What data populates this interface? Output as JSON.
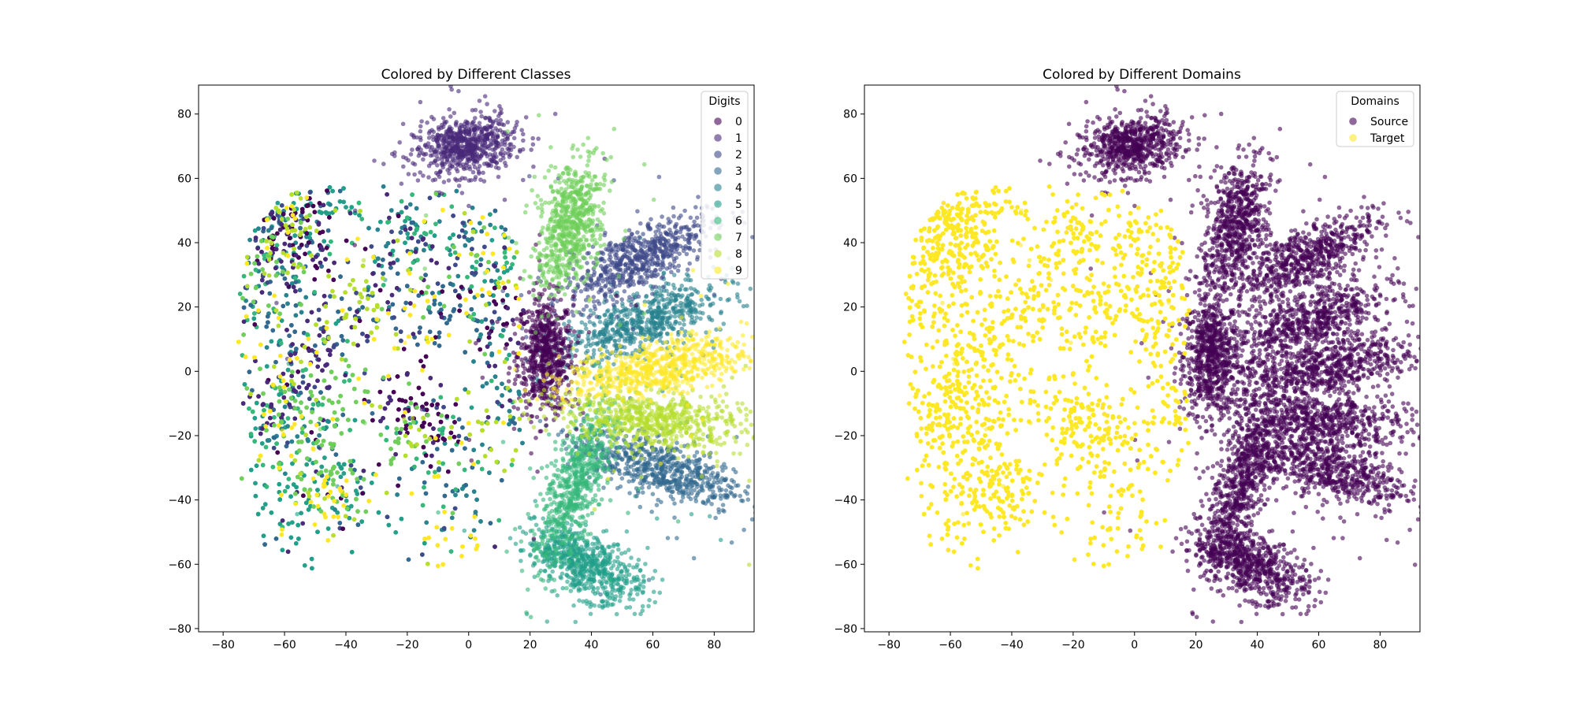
{
  "colors": {
    "digits": [
      "#440154",
      "#482878",
      "#3e4989",
      "#31688e",
      "#26828e",
      "#1f9e89",
      "#35b779",
      "#6ece58",
      "#b5de2b",
      "#fde725"
    ],
    "source": "#440154",
    "target": "#fde725"
  },
  "chart_data": [
    {
      "type": "scatter",
      "title": "Colored by Different Classes",
      "xlabel": "",
      "ylabel": "",
      "xlim": [
        -88,
        93
      ],
      "ylim": [
        -81,
        89
      ],
      "xticks": [
        -80,
        -60,
        -40,
        -20,
        0,
        20,
        40,
        60,
        80
      ],
      "yticks": [
        -80,
        -60,
        -40,
        -20,
        0,
        20,
        40,
        60,
        80
      ],
      "xtick_labels": [
        "−80",
        "−60",
        "−40",
        "−20",
        "0",
        "20",
        "40",
        "60",
        "80"
      ],
      "ytick_labels": [
        "−80",
        "−60",
        "−40",
        "−20",
        "0",
        "20",
        "40",
        "60",
        "80"
      ],
      "legend": {
        "title": "Digits",
        "placement": "top-right",
        "entries": [
          "0",
          "1",
          "2",
          "3",
          "4",
          "5",
          "6",
          "7",
          "8",
          "9"
        ]
      },
      "source_clusters": [
        {
          "digit": 0,
          "cx": 25,
          "cy": 5,
          "sx": 4.5,
          "sy": 9,
          "angle": 0
        },
        {
          "digit": 1,
          "cx": -1,
          "cy": 70,
          "sx": 8,
          "sy": 4.5,
          "angle": 10
        },
        {
          "digit": 2,
          "cx": 55,
          "cy": 35,
          "sx": 13,
          "sy": 4.5,
          "angle": 25
        },
        {
          "digit": 3,
          "cx": 62,
          "cy": -30,
          "sx": 14,
          "sy": 4.5,
          "angle": -15
        },
        {
          "digit": 4,
          "cx": 57,
          "cy": 15,
          "sx": 14,
          "sy": 4.5,
          "angle": 20
        },
        {
          "digit": 5,
          "cx": 38,
          "cy": -60,
          "sx": 10,
          "sy": 4.5,
          "angle": -25
        },
        {
          "digit": 6,
          "cx": 35,
          "cy": -35,
          "sx": 4.5,
          "sy": 13,
          "angle": -20
        },
        {
          "digit": 7,
          "cx": 33,
          "cy": 45,
          "sx": 5,
          "sy": 10,
          "angle": -15
        },
        {
          "digit": 8,
          "cx": 60,
          "cy": -15,
          "sx": 15,
          "sy": 4.5,
          "angle": -5
        },
        {
          "digit": 9,
          "cx": 62,
          "cy": 1,
          "sx": 15,
          "sy": 4,
          "angle": 10
        }
      ],
      "target_region": {
        "x_range": [
          -75,
          18
        ],
        "y_range": [
          -63,
          58
        ]
      },
      "source_points_per_cluster": 650,
      "target_points": 7500
    },
    {
      "type": "scatter",
      "title": "Colored by Different Domains",
      "xlabel": "",
      "ylabel": "",
      "xlim": [
        -88,
        93
      ],
      "ylim": [
        -81,
        89
      ],
      "xticks": [
        -80,
        -60,
        -40,
        -20,
        0,
        20,
        40,
        60,
        80
      ],
      "yticks": [
        -80,
        -60,
        -40,
        -20,
        0,
        20,
        40,
        60,
        80
      ],
      "xtick_labels": [
        "−80",
        "−60",
        "−40",
        "−20",
        "0",
        "20",
        "40",
        "60",
        "80"
      ],
      "ytick_labels": [
        "−80",
        "−60",
        "−40",
        "−20",
        "0",
        "20",
        "40",
        "60",
        "80"
      ],
      "legend": {
        "title": "Domains",
        "placement": "top-right",
        "entries": [
          "Source",
          "Target"
        ]
      },
      "series": [
        {
          "name": "Source",
          "description_clusters": "same 10 source clusters as left panel"
        },
        {
          "name": "Target",
          "region": {
            "x_range": [
              -75,
              18
            ],
            "y_range": [
              -63,
              58
            ]
          }
        }
      ]
    }
  ]
}
